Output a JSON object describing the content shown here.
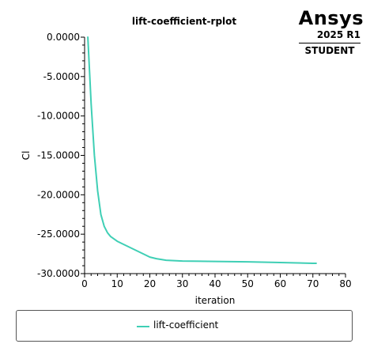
{
  "plot": {
    "title": "lift-coefficient-rplot"
  },
  "logo": {
    "brand": "Ansys",
    "release": "2025 R1",
    "edition": "STUDENT"
  },
  "colors": {
    "series": "#3fcfb5",
    "axis": "#000000"
  },
  "chart_data": {
    "type": "line",
    "title": "lift-coefficient-rplot",
    "xlabel": "iteration",
    "ylabel": "Cl",
    "xlim": [
      0,
      80
    ],
    "ylim": [
      -30,
      0
    ],
    "xticks": [
      "0",
      "10",
      "20",
      "30",
      "40",
      "50",
      "60",
      "70",
      "80"
    ],
    "yticks": [
      "0.0000",
      "-5.0000",
      "-10.0000",
      "-15.0000",
      "-20.0000",
      "-25.0000",
      "-30.0000"
    ],
    "grid": false,
    "legend_position": "bottom",
    "series": [
      {
        "name": "lift-coefficient",
        "x": [
          1,
          2,
          3,
          4,
          5,
          6,
          7,
          8,
          10,
          12,
          15,
          18,
          20,
          22,
          25,
          30,
          40,
          50,
          60,
          70,
          71
        ],
        "y": [
          0.0,
          -8.5,
          -15.0,
          -19.5,
          -22.5,
          -24.0,
          -24.8,
          -25.3,
          -25.9,
          -26.3,
          -26.9,
          -27.5,
          -27.9,
          -28.1,
          -28.3,
          -28.4,
          -28.45,
          -28.5,
          -28.6,
          -28.7,
          -28.7
        ]
      }
    ]
  }
}
